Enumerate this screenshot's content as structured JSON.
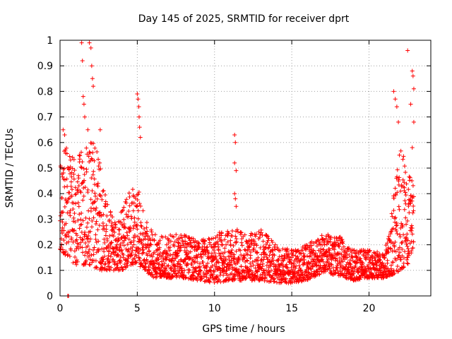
{
  "chart_data": {
    "type": "scatter",
    "title": "Day 145 of 2025, SRMTID for receiver dprt",
    "xlabel": "GPS time / hours",
    "ylabel": "SRMTID / TECUs",
    "xlim": [
      0,
      24
    ],
    "ylim": [
      0,
      1
    ],
    "xticks": [
      0,
      5,
      10,
      15,
      20
    ],
    "yticks": [
      0,
      0.1,
      0.2,
      0.3,
      0.4,
      0.5,
      0.6,
      0.7,
      0.8,
      0.9,
      1
    ],
    "ytick_labels": [
      "0",
      "0.1",
      "0.2",
      "0.3",
      "0.4",
      "0.5",
      "0.6",
      "0.7",
      "0.8",
      "0.9",
      "1"
    ],
    "grid": true,
    "marker": "+",
    "series_color": "#ff0000",
    "series": [
      {
        "name": "SRMTID",
        "envelope": [
          {
            "x": 0.0,
            "low": 0.18,
            "high": 0.55
          },
          {
            "x": 0.5,
            "low": 0.15,
            "high": 0.6
          },
          {
            "x": 1.0,
            "low": 0.12,
            "high": 0.52
          },
          {
            "x": 1.5,
            "low": 0.12,
            "high": 0.6
          },
          {
            "x": 2.0,
            "low": 0.12,
            "high": 0.62
          },
          {
            "x": 2.5,
            "low": 0.1,
            "high": 0.55
          },
          {
            "x": 3.0,
            "low": 0.1,
            "high": 0.38
          },
          {
            "x": 3.5,
            "low": 0.1,
            "high": 0.3
          },
          {
            "x": 4.0,
            "low": 0.1,
            "high": 0.34
          },
          {
            "x": 4.5,
            "low": 0.12,
            "high": 0.42
          },
          {
            "x": 5.0,
            "low": 0.12,
            "high": 0.45
          },
          {
            "x": 5.5,
            "low": 0.1,
            "high": 0.3
          },
          {
            "x": 6.0,
            "low": 0.07,
            "high": 0.25
          },
          {
            "x": 7.0,
            "low": 0.07,
            "high": 0.24
          },
          {
            "x": 8.0,
            "low": 0.07,
            "high": 0.24
          },
          {
            "x": 9.0,
            "low": 0.06,
            "high": 0.22
          },
          {
            "x": 10.0,
            "low": 0.05,
            "high": 0.24
          },
          {
            "x": 11.0,
            "low": 0.06,
            "high": 0.28
          },
          {
            "x": 12.0,
            "low": 0.06,
            "high": 0.24
          },
          {
            "x": 13.0,
            "low": 0.06,
            "high": 0.26
          },
          {
            "x": 14.0,
            "low": 0.05,
            "high": 0.2
          },
          {
            "x": 15.0,
            "low": 0.05,
            "high": 0.18
          },
          {
            "x": 16.0,
            "low": 0.06,
            "high": 0.2
          },
          {
            "x": 17.0,
            "low": 0.09,
            "high": 0.24
          },
          {
            "x": 18.0,
            "low": 0.08,
            "high": 0.24
          },
          {
            "x": 19.0,
            "low": 0.06,
            "high": 0.18
          },
          {
            "x": 20.0,
            "low": 0.07,
            "high": 0.18
          },
          {
            "x": 21.0,
            "low": 0.07,
            "high": 0.17
          },
          {
            "x": 21.5,
            "low": 0.08,
            "high": 0.35
          },
          {
            "x": 22.0,
            "low": 0.1,
            "high": 0.6
          },
          {
            "x": 22.5,
            "low": 0.12,
            "high": 0.5
          },
          {
            "x": 22.9,
            "low": 0.2,
            "high": 0.45
          }
        ],
        "outliers": [
          [
            1.4,
            0.99
          ],
          [
            1.45,
            0.92
          ],
          [
            1.5,
            0.78
          ],
          [
            1.55,
            0.75
          ],
          [
            1.6,
            0.7
          ],
          [
            1.9,
            0.99
          ],
          [
            2.0,
            0.97
          ],
          [
            2.05,
            0.9
          ],
          [
            2.1,
            0.85
          ],
          [
            2.15,
            0.82
          ],
          [
            1.8,
            0.65
          ],
          [
            2.6,
            0.65
          ],
          [
            0.2,
            0.65
          ],
          [
            0.3,
            0.63
          ],
          [
            5.0,
            0.79
          ],
          [
            5.05,
            0.77
          ],
          [
            5.1,
            0.74
          ],
          [
            5.12,
            0.7
          ],
          [
            5.15,
            0.66
          ],
          [
            5.2,
            0.62
          ],
          [
            11.3,
            0.63
          ],
          [
            11.35,
            0.6
          ],
          [
            11.3,
            0.52
          ],
          [
            11.4,
            0.49
          ],
          [
            11.3,
            0.4
          ],
          [
            11.35,
            0.38
          ],
          [
            11.4,
            0.35
          ],
          [
            21.6,
            0.8
          ],
          [
            21.7,
            0.77
          ],
          [
            21.8,
            0.74
          ],
          [
            21.9,
            0.68
          ],
          [
            22.5,
            0.96
          ],
          [
            22.8,
            0.88
          ],
          [
            22.85,
            0.86
          ],
          [
            22.9,
            0.81
          ],
          [
            22.7,
            0.75
          ],
          [
            22.9,
            0.68
          ],
          [
            22.8,
            0.58
          ],
          [
            0.5,
            0.0
          ],
          [
            0.55,
            0.0
          ]
        ]
      }
    ]
  }
}
